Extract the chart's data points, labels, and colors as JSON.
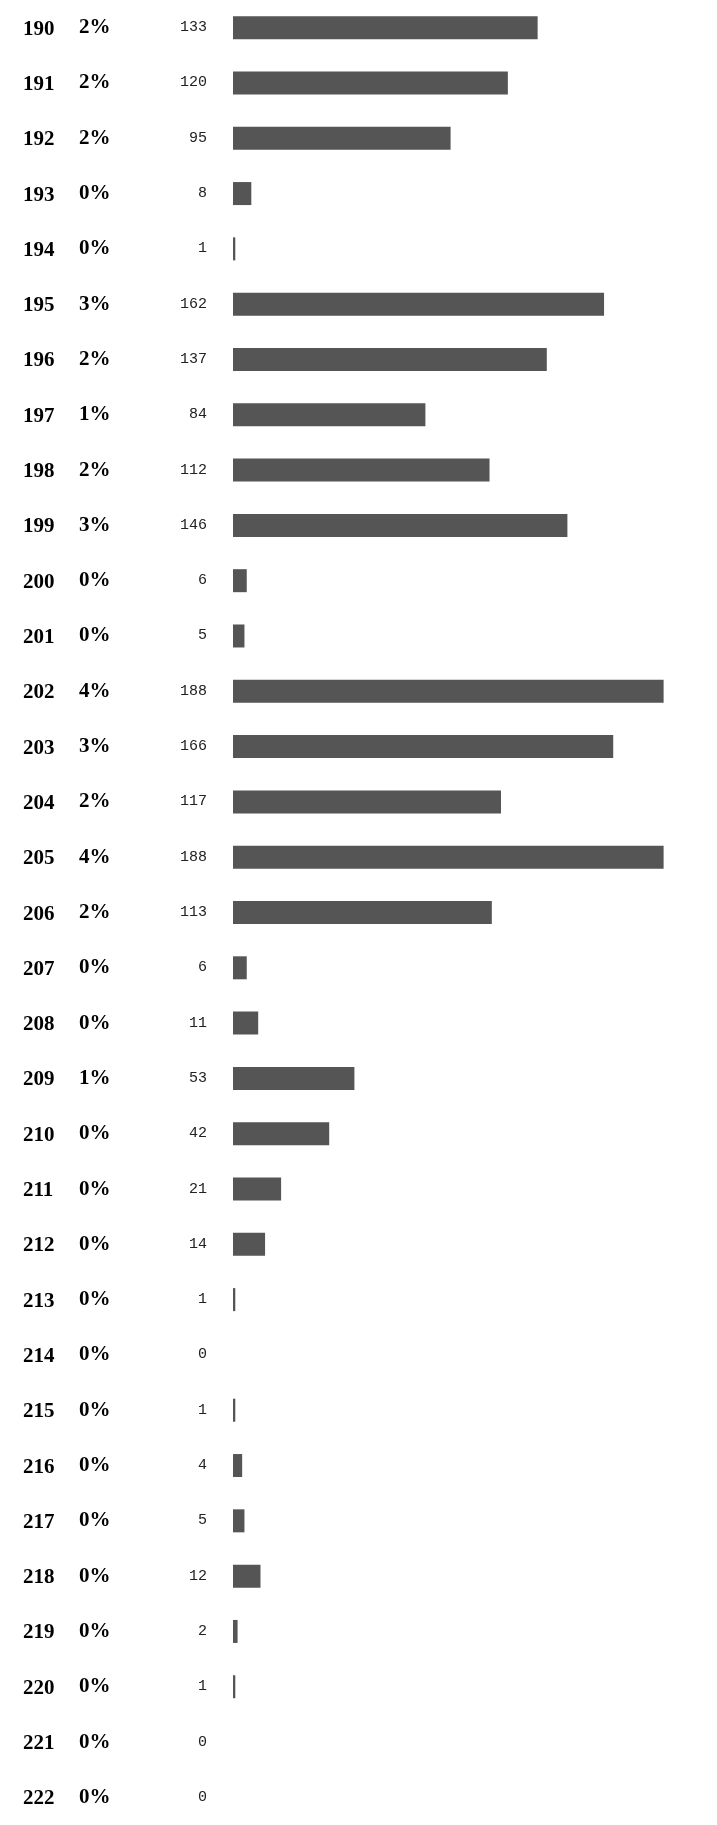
{
  "chart_data": {
    "type": "bar",
    "orientation": "horizontal",
    "data_labels": true,
    "grid": false,
    "color": "#555555",
    "categories": [
      "190",
      "191",
      "192",
      "193",
      "194",
      "195",
      "196",
      "197",
      "198",
      "199",
      "200",
      "201",
      "202",
      "203",
      "204",
      "205",
      "206",
      "207",
      "208",
      "209",
      "210",
      "211",
      "212",
      "213",
      "214",
      "215",
      "216",
      "217",
      "218",
      "219",
      "220",
      "221",
      "222"
    ],
    "values": [
      133,
      120,
      95,
      8,
      1,
      162,
      137,
      84,
      112,
      146,
      6,
      5,
      188,
      166,
      117,
      188,
      113,
      6,
      11,
      53,
      42,
      21,
      14,
      1,
      0,
      1,
      4,
      5,
      12,
      2,
      1,
      0,
      0
    ],
    "annotations": [
      "2%",
      "2%",
      "2%",
      "0%",
      "0%",
      "3%",
      "2%",
      "1%",
      "2%",
      "3%",
      "0%",
      "0%",
      "4%",
      "3%",
      "2%",
      "4%",
      "2%",
      "0%",
      "0%",
      "1%",
      "0%",
      "0%",
      "0%",
      "0%",
      "0%",
      "0%",
      "0%",
      "0%",
      "0%",
      "0%",
      "0%",
      "0%",
      "0%"
    ]
  }
}
